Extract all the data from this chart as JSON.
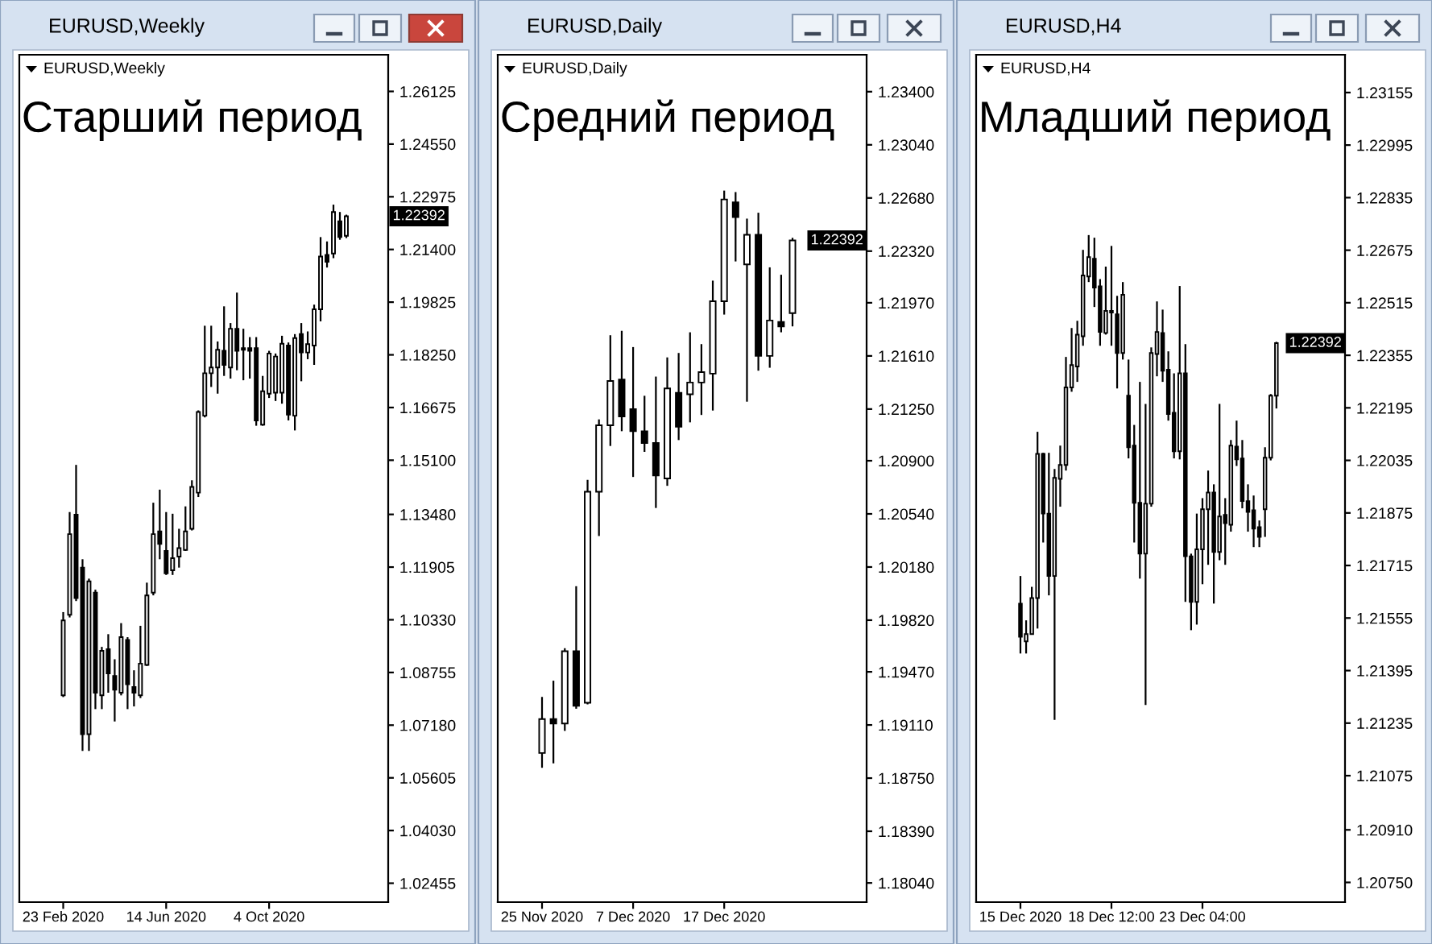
{
  "chart_data": [
    {
      "type": "candlestick",
      "title": "EURUSD,Weekly",
      "categories": [
        "23 Feb 2020",
        null,
        null,
        null,
        null,
        null,
        null,
        null,
        null,
        null,
        null,
        null,
        null,
        null,
        null,
        null,
        "14 Jun 2020",
        null,
        null,
        null,
        null,
        null,
        null,
        null,
        null,
        null,
        null,
        null,
        null,
        null,
        null,
        null,
        "4 Oct 2020",
        null,
        null,
        null,
        null,
        null,
        null,
        null,
        null,
        null,
        null,
        null,
        null
      ],
      "ohlc": [
        [
          1.0807,
          1.1056,
          1.0802,
          1.1031
        ],
        [
          1.1048,
          1.1355,
          1.104,
          1.1289
        ],
        [
          1.1347,
          1.1496,
          1.1089,
          1.1098
        ],
        [
          1.1189,
          1.1214,
          1.0641,
          1.0691
        ],
        [
          1.0691,
          1.1156,
          1.0641,
          1.1148
        ],
        [
          1.1114,
          1.1123,
          1.0766,
          1.0815
        ],
        [
          1.0807,
          1.0952,
          1.0766,
          1.094
        ],
        [
          1.0945,
          1.099,
          1.0815,
          1.0873
        ],
        [
          1.0865,
          1.0915,
          1.0729,
          1.0824
        ],
        [
          1.0815,
          1.1023,
          1.0807,
          1.0981
        ],
        [
          1.0973,
          1.0981,
          1.0766,
          1.084
        ],
        [
          1.0832,
          1.0882,
          1.0774,
          1.0815
        ],
        [
          1.0807,
          1.1015,
          1.0799,
          1.0902
        ],
        [
          1.0898,
          1.1144,
          1.0895,
          1.1106
        ],
        [
          1.1114,
          1.1383,
          1.1106,
          1.1289
        ],
        [
          1.1297,
          1.1422,
          1.1214,
          1.126
        ],
        [
          1.1239,
          1.1355,
          1.1167,
          1.1172
        ],
        [
          1.1181,
          1.135,
          1.1167,
          1.1217
        ],
        [
          1.1222,
          1.1305,
          1.1189,
          1.1247
        ],
        [
          1.1242,
          1.1372,
          1.1239,
          1.1297
        ],
        [
          1.1305,
          1.145,
          1.13,
          1.143
        ],
        [
          1.1413,
          1.1659,
          1.14,
          1.1654
        ],
        [
          1.1643,
          1.1912,
          1.1638,
          1.177
        ],
        [
          1.177,
          1.1912,
          1.1729,
          1.1787
        ],
        [
          1.1787,
          1.1865,
          1.1709,
          1.184
        ],
        [
          1.1837,
          1.197,
          1.1762,
          1.1795
        ],
        [
          1.1787,
          1.192,
          1.1754,
          1.1903
        ],
        [
          1.1903,
          1.2011,
          1.1779,
          1.1837
        ],
        [
          1.1845,
          1.1903,
          1.1749,
          1.184
        ],
        [
          1.1845,
          1.1878,
          1.1754,
          1.1837
        ],
        [
          1.1845,
          1.1878,
          1.1613,
          1.1629
        ],
        [
          1.1616,
          1.1762,
          1.1613,
          1.1716
        ],
        [
          1.1709,
          1.1837,
          1.1696,
          1.1829
        ],
        [
          1.1712,
          1.1829,
          1.1687,
          1.182
        ],
        [
          1.1712,
          1.1882,
          1.1679,
          1.1858
        ],
        [
          1.1853,
          1.1862,
          1.1629,
          1.1646
        ],
        [
          1.1643,
          1.1887,
          1.1599,
          1.1875
        ],
        [
          1.1887,
          1.192,
          1.1746,
          1.1832
        ],
        [
          1.1832,
          1.1895,
          1.1812,
          1.1857
        ],
        [
          1.1853,
          1.1975,
          1.1795,
          1.1961
        ],
        [
          1.1961,
          1.2177,
          1.1925,
          1.2119
        ],
        [
          1.2124,
          1.2164,
          1.2086,
          1.2103
        ],
        [
          1.2128,
          1.2274,
          1.2114,
          1.2252
        ],
        [
          1.2224,
          1.2252,
          1.2169,
          1.2177
        ],
        [
          1.2181,
          1.2244,
          1.2174,
          1.22392
        ]
      ],
      "ylim": [
        1.0189,
        1.2722
      ],
      "yticks": [
        1.26125,
        {
          "value": 1.2455,
          "label": "1.24550"
        },
        1.22975,
        {
          "value": 1.214,
          "label": "1.21400"
        },
        1.19825,
        {
          "value": 1.1825,
          "label": "1.18250"
        },
        1.16675,
        {
          "value": 1.151,
          "label": "1.15100"
        },
        {
          "value": 1.1348,
          "label": "1.13480"
        },
        1.11905,
        {
          "value": 1.1033,
          "label": "1.10330"
        },
        1.08755,
        {
          "value": 1.0718,
          "label": "1.07180"
        },
        1.05605,
        {
          "value": 1.0403,
          "label": "1.04030"
        },
        1.02455
      ],
      "annotations": [
        "Старший период",
        "1.22392"
      ]
    },
    {
      "type": "candlestick",
      "title": "EURUSD,Daily",
      "categories": [
        "25 Nov 2020",
        null,
        null,
        null,
        null,
        null,
        null,
        null,
        "7 Dec 2020",
        null,
        null,
        null,
        null,
        null,
        null,
        null,
        "17 Dec 2020",
        null,
        null,
        null,
        null,
        null,
        null
      ],
      "ohlc": [
        [
          1.1892,
          1.193,
          1.1882,
          1.1915
        ],
        [
          1.1915,
          1.1941,
          1.1885,
          1.1912
        ],
        [
          1.1912,
          1.1963,
          1.1907,
          1.1961
        ],
        [
          1.1961,
          1.2005,
          1.1922,
          1.1924
        ],
        [
          1.1926,
          1.2077,
          1.1925,
          1.2069
        ],
        [
          1.2069,
          1.2118,
          1.2039,
          1.2114
        ],
        [
          1.2114,
          1.2175,
          1.21,
          1.2144
        ],
        [
          1.2145,
          1.2178,
          1.211,
          1.212
        ],
        [
          1.2125,
          1.2167,
          1.2079,
          1.211
        ],
        [
          1.211,
          1.2134,
          1.2096,
          1.2102
        ],
        [
          1.2102,
          1.2147,
          1.2058,
          1.208
        ],
        [
          1.2078,
          1.216,
          1.2073,
          1.2139
        ],
        [
          1.2136,
          1.2163,
          1.2104,
          1.2113
        ],
        [
          1.2135,
          1.2177,
          1.2116,
          1.2143
        ],
        [
          1.2143,
          1.2169,
          1.2121,
          1.215
        ],
        [
          1.2149,
          1.2212,
          1.2124,
          1.2198
        ],
        [
          1.2198,
          1.2273,
          1.2189,
          1.2267
        ],
        [
          1.2265,
          1.2272,
          1.2225,
          1.2255
        ],
        [
          1.2223,
          1.2254,
          1.213,
          1.2243
        ],
        [
          1.2243,
          1.2258,
          1.2151,
          1.2161
        ],
        [
          1.2161,
          1.2221,
          1.2153,
          1.2185
        ],
        [
          1.2184,
          1.2216,
          1.2177,
          1.2181
        ],
        [
          1.219,
          1.2241,
          1.2181,
          1.22392
        ]
      ],
      "ylim": [
        1.1791,
        1.2365
      ],
      "yticks": [
        {
          "value": 1.234,
          "label": "1.23400"
        },
        {
          "value": 1.2304,
          "label": "1.23040"
        },
        {
          "value": 1.2268,
          "label": "1.22680"
        },
        {
          "value": 1.2232,
          "label": "1.22320"
        },
        {
          "value": 1.2197,
          "label": "1.21970"
        },
        {
          "value": 1.2161,
          "label": "1.21610"
        },
        {
          "value": 1.2125,
          "label": "1.21250"
        },
        {
          "value": 1.209,
          "label": "1.20900"
        },
        {
          "value": 1.2054,
          "label": "1.20540"
        },
        {
          "value": 1.2018,
          "label": "1.20180"
        },
        {
          "value": 1.1982,
          "label": "1.19820"
        },
        {
          "value": 1.1947,
          "label": "1.19470"
        },
        {
          "value": 1.1911,
          "label": "1.19110"
        },
        {
          "value": 1.1875,
          "label": "1.18750"
        },
        {
          "value": 1.1839,
          "label": "1.18390"
        },
        {
          "value": 1.1804,
          "label": "1.18040"
        }
      ],
      "annotations": [
        "Средний период",
        "1.22392"
      ]
    },
    {
      "type": "candlestick",
      "title": "EURUSD,H4",
      "categories": [
        "15 Dec 2020",
        null,
        null,
        null,
        null,
        null,
        null,
        null,
        null,
        null,
        null,
        null,
        null,
        null,
        null,
        null,
        "18 Dec 12:00",
        null,
        null,
        null,
        null,
        null,
        null,
        null,
        null,
        null,
        null,
        null,
        null,
        null,
        null,
        null,
        "23 Dec 04:00",
        null,
        null,
        null,
        null,
        null,
        null,
        null,
        null,
        null,
        null,
        null,
        null,
        null
      ],
      "ohlc": [
        [
          1.21599,
          1.21683,
          1.21447,
          1.21498
        ],
        [
          1.21484,
          1.21548,
          1.21447,
          1.21506
        ],
        [
          1.21506,
          1.2165,
          1.21506,
          1.21616
        ],
        [
          1.21616,
          1.22122,
          1.21523,
          1.22055
        ],
        [
          1.22055,
          1.22058,
          1.21785,
          1.21873
        ],
        [
          1.21873,
          1.22058,
          1.21624,
          1.21683
        ],
        [
          1.21683,
          1.22009,
          1.21245,
          1.21982
        ],
        [
          1.21979,
          1.2208,
          1.21894,
          1.22021
        ],
        [
          1.22021,
          1.2235,
          1.22004,
          1.22257
        ],
        [
          1.22257,
          1.22438,
          1.22244,
          1.22325
        ],
        [
          1.22321,
          1.2246,
          1.22274,
          1.22418
        ],
        [
          1.22413,
          1.22676,
          1.22384,
          1.22598
        ],
        [
          1.22595,
          1.22721,
          1.22578,
          1.22654
        ],
        [
          1.22649,
          1.22713,
          1.22502,
          1.22561
        ],
        [
          1.22565,
          1.22587,
          1.22384,
          1.22426
        ],
        [
          1.22423,
          1.22625,
          1.22418,
          1.2249
        ],
        [
          1.2249,
          1.22688,
          1.22384,
          1.22485
        ],
        [
          1.2248,
          1.22536,
          1.22254,
          1.22362
        ],
        [
          1.22362,
          1.22578,
          1.22342,
          1.22539
        ],
        [
          1.22232,
          1.22342,
          1.22041,
          1.22075
        ],
        [
          1.2208,
          1.22143,
          1.21785,
          1.21906
        ],
        [
          1.21906,
          1.22274,
          1.21675,
          1.21751
        ],
        [
          1.21751,
          1.22207,
          1.2129,
          1.21903
        ],
        [
          1.21903,
          1.22379,
          1.21894,
          1.22362
        ],
        [
          1.22359,
          1.22519,
          1.22291,
          1.22426
        ],
        [
          1.22423,
          1.22494,
          1.22274,
          1.22308
        ],
        [
          1.22311,
          1.22367,
          1.22156,
          1.22176
        ],
        [
          1.2218,
          1.223,
          1.22041,
          1.22063
        ],
        [
          1.22063,
          1.22566,
          1.22038,
          1.223
        ],
        [
          1.223,
          1.22389,
          1.21604,
          1.21743
        ],
        [
          1.21743,
          1.21751,
          1.21518,
          1.21604
        ],
        [
          1.21604,
          1.21873,
          1.21535,
          1.21764
        ],
        [
          1.21764,
          1.2192,
          1.21658,
          1.21886
        ],
        [
          1.21886,
          1.22004,
          1.21717,
          1.21937
        ],
        [
          1.21937,
          1.21962,
          1.21599,
          1.21756
        ],
        [
          1.21756,
          1.22207,
          1.21731,
          1.21864
        ],
        [
          1.21869,
          1.2192,
          1.21717,
          1.21844
        ],
        [
          1.21839,
          1.22097,
          1.21818,
          1.2208
        ],
        [
          1.22077,
          1.22156,
          1.22018,
          1.22038
        ],
        [
          1.22041,
          1.22097,
          1.21889,
          1.21911
        ],
        [
          1.21911,
          1.21962,
          1.21818,
          1.21878
        ],
        [
          1.21883,
          1.21928,
          1.21771,
          1.21827
        ],
        [
          1.21832,
          1.21852,
          1.21771,
          1.21802
        ],
        [
          1.21886,
          1.22075,
          1.21802,
          1.22043
        ],
        [
          1.22043,
          1.22237,
          1.22035,
          1.22232
        ],
        [
          1.22232,
          1.22396,
          1.22193,
          1.22392
        ]
      ],
      "ylim": [
        1.2069,
        1.2327
      ],
      "yticks": [
        1.23155,
        1.22995,
        1.22835,
        1.22675,
        1.22515,
        1.22355,
        1.22195,
        1.22035,
        1.21875,
        1.21715,
        1.21555,
        1.21395,
        1.21235,
        1.21075,
        {
          "value": 1.2091,
          "label": "1.20910"
        },
        {
          "value": 1.2075,
          "label": "1.20750"
        }
      ],
      "annotations": [
        "Младший период",
        "1.22392"
      ]
    }
  ]
}
